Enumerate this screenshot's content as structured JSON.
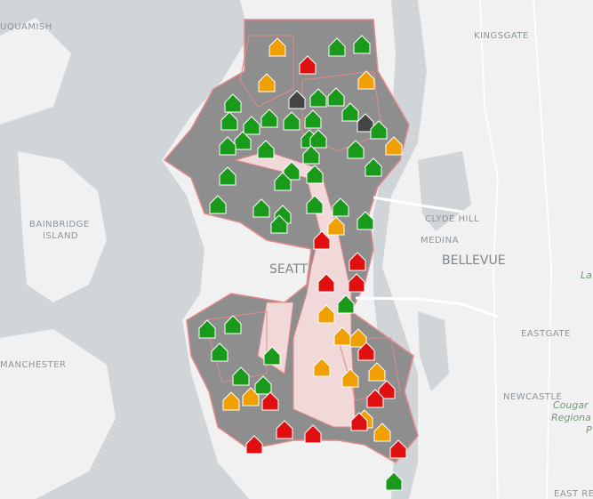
{
  "map": {
    "labels": [
      "UQUAMISH",
      "KINGSGATE",
      "BAINBRIDGE",
      "ISLAND",
      "CLYDE HILL",
      "MEDINA",
      "BELLEVUE",
      "SEATT",
      "MANCHESTER",
      "EASTGATE",
      "NEWCASTLE",
      "Cougar",
      "Regiona",
      "P",
      "EAST RE",
      "La"
    ]
  }
}
